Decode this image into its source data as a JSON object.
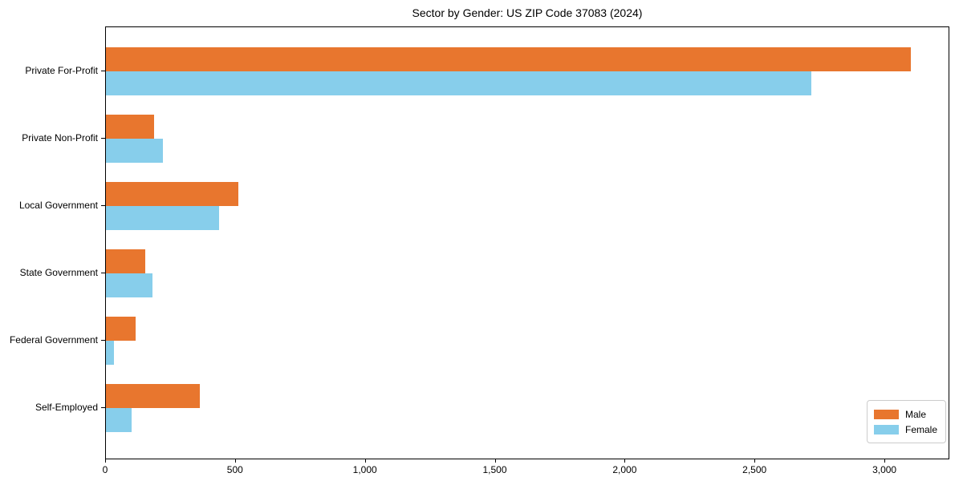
{
  "title": "Sector by Gender: US ZIP Code 37083 (2024)",
  "legend": {
    "position": "lower right",
    "items": [
      {
        "label": "Male",
        "color": "#e8762e"
      },
      {
        "label": "Female",
        "color": "#87ceeb"
      }
    ]
  },
  "chart_data": {
    "type": "bar",
    "orientation": "horizontal",
    "title": "Sector by Gender: US ZIP Code 37083 (2024)",
    "categories": [
      "Private For-Profit",
      "Private Non-Profit",
      "Local Government",
      "State Government",
      "Federal Government",
      "Self-Employed"
    ],
    "series": [
      {
        "name": "Male",
        "color": "#e8762e",
        "values": [
          3100,
          185,
          510,
          150,
          115,
          360
        ]
      },
      {
        "name": "Female",
        "color": "#87ceeb",
        "values": [
          2715,
          220,
          435,
          180,
          30,
          100
        ]
      }
    ],
    "xlabel": "",
    "ylabel": "",
    "xlim": [
      0,
      3250
    ],
    "xticks": [
      0,
      500,
      1000,
      1500,
      2000,
      2500,
      3000
    ],
    "xtick_labels": [
      "0",
      "500",
      "1,000",
      "1,500",
      "2,000",
      "2,500",
      "3,000"
    ],
    "grid": false,
    "legend_position": "lower right"
  }
}
